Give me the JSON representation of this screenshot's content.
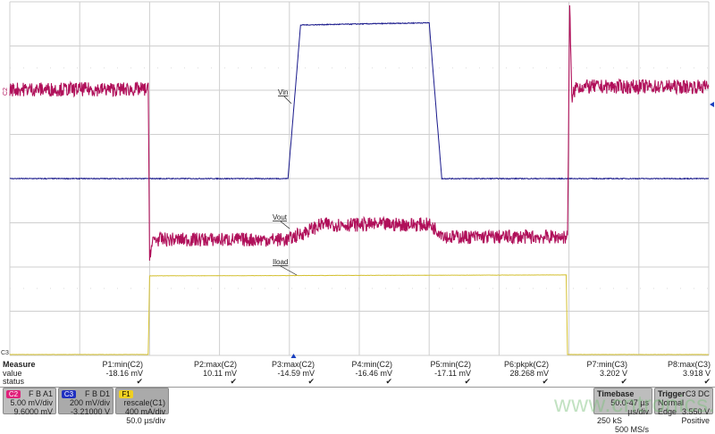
{
  "chart_data": {
    "type": "line",
    "xlabel": "",
    "ylabel": "",
    "x_unit": "µs",
    "xlim": [
      -203,
      297
    ],
    "grid": true,
    "grid_divisions": {
      "x": 10,
      "y": 8
    },
    "series": [
      {
        "name": "Vout",
        "channel": "C2",
        "color": "#b0105a",
        "unit": "mV",
        "scale_per_div": 5.0,
        "offset": 9.6,
        "ripple_pp": 1.6,
        "points": [
          [
            -203,
            0.5
          ],
          [
            -104,
            0.5
          ],
          [
            -103,
            -18.1
          ],
          [
            -100,
            -16.5
          ],
          [
            -4,
            -16.5
          ],
          [
            20,
            -14.8
          ],
          [
            97,
            -14.8
          ],
          [
            110,
            -16.2
          ],
          [
            196,
            -16.2
          ],
          [
            197.5,
            10.1
          ],
          [
            199,
            -0.6
          ],
          [
            202,
            0.8
          ],
          [
            297,
            0.8
          ]
        ]
      },
      {
        "name": "Vin",
        "channel": "C3",
        "color": "#1a1a8c",
        "unit": "V",
        "scale_per_div": 0.2,
        "offset": -3.21,
        "ripple_pp": 0.004,
        "points": [
          [
            -203,
            3.21
          ],
          [
            -4,
            3.21
          ],
          [
            5,
            3.905
          ],
          [
            97,
            3.915
          ],
          [
            106,
            3.21
          ],
          [
            297,
            3.21
          ]
        ]
      },
      {
        "name": "Iload",
        "channel": "F1",
        "color": "#d4c030",
        "unit": "mA",
        "scale_per_div": 400,
        "ripple_pp": 2,
        "points": [
          [
            -203,
            0
          ],
          [
            -104,
            0
          ],
          [
            -103,
            712
          ],
          [
            195,
            720
          ],
          [
            196,
            0
          ],
          [
            297,
            0
          ]
        ]
      }
    ],
    "trigger_time": 0
  },
  "labels": {
    "vin": "Vin",
    "vout": "Vout",
    "iload": "Iload",
    "c2_marker": "C2",
    "c3_marker": "C3"
  },
  "measure": {
    "header": "Measure",
    "row_value": "value",
    "row_status": "status",
    "items": [
      {
        "name": "P1:min(C2)",
        "value": "-18.16 mV",
        "status": "✔"
      },
      {
        "name": "P2:max(C2)",
        "value": "10.11 mV",
        "status": "✔"
      },
      {
        "name": "P3:max(C2)",
        "value": "-14.59 mV",
        "status": "✔"
      },
      {
        "name": "P4:min(C2)",
        "value": "-16.46 mV",
        "status": "✔"
      },
      {
        "name": "P5:min(C2)",
        "value": "-17.11 mV",
        "status": "✔"
      },
      {
        "name": "P6:pkpk(C2)",
        "value": "28.268 mV",
        "status": "✔"
      },
      {
        "name": "P7:min(C3)",
        "value": "3.202 V",
        "status": "✔"
      },
      {
        "name": "P8:max(C3)",
        "value": "3.918 V",
        "status": "✔"
      }
    ]
  },
  "channels": [
    {
      "tag": "C2",
      "flags": "F B A1",
      "scale": "5.00 mV/div",
      "offset": "9.6000 mV",
      "color": "#e0207a"
    },
    {
      "tag": "C3",
      "flags": "F B D1",
      "scale": "200 mV/div",
      "offset": "-3.21000 V",
      "color": "#2030c0"
    },
    {
      "tag": "F1",
      "flags": "rescale(C1)",
      "scale": "400 mA/div",
      "offset": "50.0 µs/div",
      "color": "#f0d020"
    }
  ],
  "timebase": {
    "title": "Timebase",
    "delay": "-47 µs",
    "div": "50.0 µs/div",
    "samples": "250 kS",
    "rate": "500 MS/s"
  },
  "trigger": {
    "title": "Trigger",
    "source": "C3 DC",
    "mode": "Normal",
    "level": "3.550 V",
    "type": "Edge",
    "slope": "Positive"
  },
  "watermark": "www.cntronics.com"
}
